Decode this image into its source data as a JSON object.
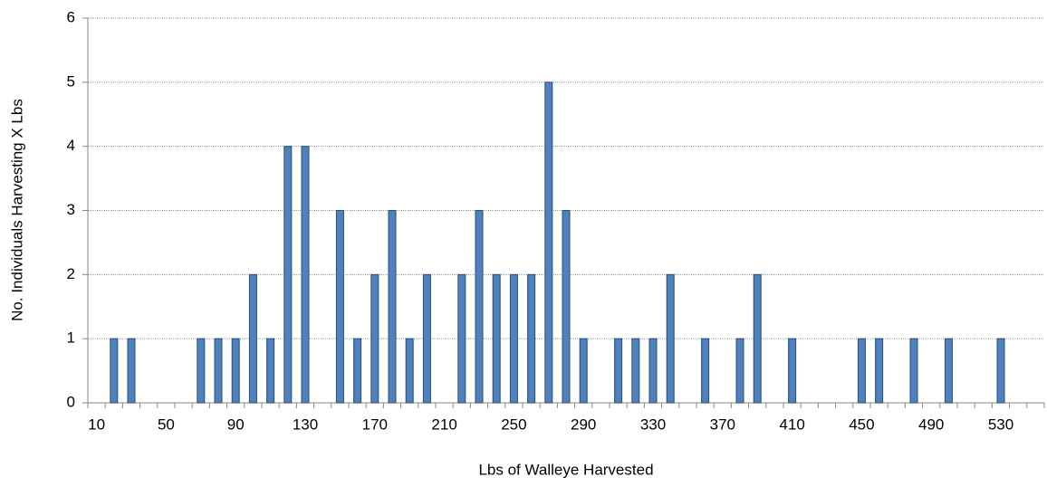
{
  "chart_data": {
    "type": "bar",
    "x_label": "Lbs of Walleye Harvested",
    "y_label": "No. Individuals Harvesting X Lbs",
    "categories": [
      "10",
      null,
      null,
      null,
      "50",
      null,
      null,
      null,
      "90",
      null,
      null,
      null,
      "130",
      null,
      null,
      null,
      "170",
      null,
      null,
      null,
      "210",
      null,
      null,
      null,
      "250",
      null,
      null,
      null,
      "290",
      null,
      null,
      null,
      "330",
      null,
      null,
      null,
      "370",
      null,
      null,
      null,
      "410",
      null,
      null,
      null,
      "450",
      null,
      null,
      null,
      "490",
      null,
      null,
      null,
      "530",
      null,
      null
    ],
    "values": [
      0,
      1,
      1,
      0,
      0,
      0,
      1,
      1,
      1,
      2,
      1,
      4,
      4,
      0,
      3,
      1,
      2,
      3,
      1,
      2,
      0,
      2,
      3,
      2,
      2,
      2,
      5,
      3,
      1,
      0,
      1,
      1,
      1,
      2,
      0,
      1,
      0,
      1,
      2,
      0,
      1,
      0,
      0,
      0,
      1,
      1,
      0,
      1,
      0,
      1,
      0,
      0,
      1,
      0,
      0
    ],
    "color": "#4f81bd",
    "ylim": [
      0,
      6
    ],
    "yticks": [
      0,
      1,
      2,
      3,
      4,
      5,
      6
    ],
    "grid": true
  }
}
